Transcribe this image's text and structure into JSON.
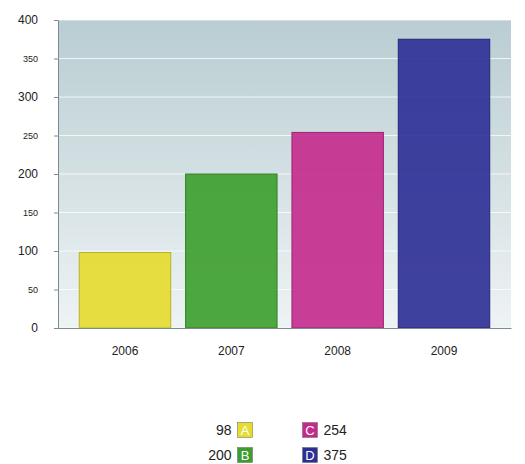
{
  "chart_data": {
    "type": "bar",
    "categories": [
      "2006",
      "2007",
      "2008",
      "2009"
    ],
    "series": [
      {
        "name": "A",
        "color": "#e6dc2e",
        "values": [
          98,
          null,
          null,
          null
        ]
      },
      {
        "name": "B",
        "color": "#3c9e2c",
        "values": [
          null,
          200,
          null,
          null
        ]
      },
      {
        "name": "C",
        "color": "#c42a8c",
        "values": [
          null,
          null,
          254,
          null
        ]
      },
      {
        "name": "D",
        "color": "#2c2e96",
        "values": [
          null,
          null,
          null,
          375
        ]
      }
    ],
    "stacked": true,
    "ylim": [
      0,
      400
    ],
    "yticks": [
      0,
      50,
      100,
      150,
      200,
      250,
      300,
      350,
      400
    ],
    "grid": true,
    "legend": "bottom"
  }
}
